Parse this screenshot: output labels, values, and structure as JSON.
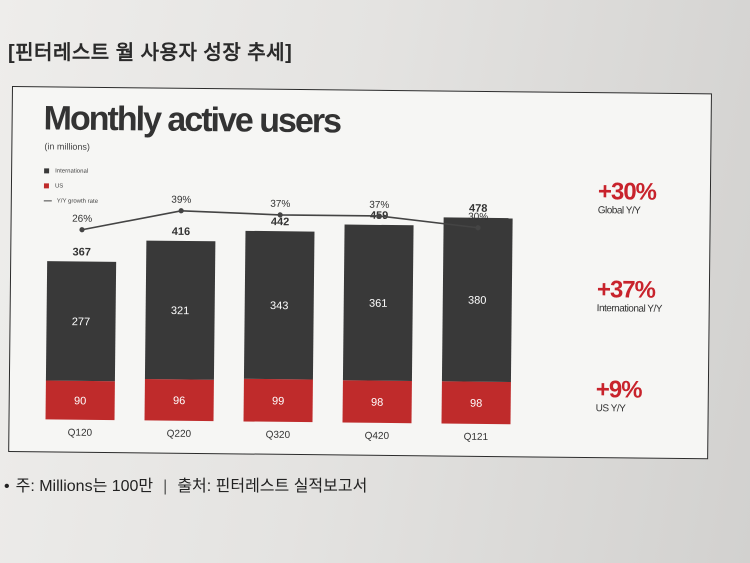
{
  "page": {
    "heading": "[핀터레스트 월 사용자 성장 추세]",
    "footnote_bullet": "•",
    "footnote_note": "주: Millions는 100만",
    "footnote_sep": "|",
    "footnote_source": "출처: 핀터레스트 실적보고서"
  },
  "colors": {
    "international": "#393939",
    "us": "#bf2b2b",
    "accent_red": "#c8232c",
    "growth_line": "#444444"
  },
  "chart_data": {
    "type": "bar",
    "title": "Monthly active users",
    "subtitle": "(in millions)",
    "categories": [
      "Q120",
      "Q220",
      "Q320",
      "Q420",
      "Q121"
    ],
    "series": [
      {
        "name": "International",
        "values": [
          277,
          321,
          343,
          361,
          380
        ]
      },
      {
        "name": "US",
        "values": [
          90,
          96,
          99,
          98,
          98
        ]
      }
    ],
    "us_labels": [
      "90",
      "96",
      "99",
      "98",
      "98"
    ],
    "totals": [
      367,
      416,
      442,
      459,
      478
    ],
    "growth": {
      "name": "Y/Y growth rate",
      "values": [
        26,
        39,
        37,
        37,
        30
      ],
      "labels": [
        "26%",
        "39%",
        "37%",
        "37%",
        "30%"
      ]
    },
    "legend": [
      "International",
      "US",
      "Y/Y growth rate"
    ],
    "legend_position": "top-left",
    "stacked": true,
    "ylim": [
      0,
      480
    ]
  },
  "stats": [
    {
      "value": "+30%",
      "label": "Global Y/Y"
    },
    {
      "value": "+37%",
      "label": "International Y/Y"
    },
    {
      "value": "+9%",
      "label": "US Y/Y"
    }
  ]
}
